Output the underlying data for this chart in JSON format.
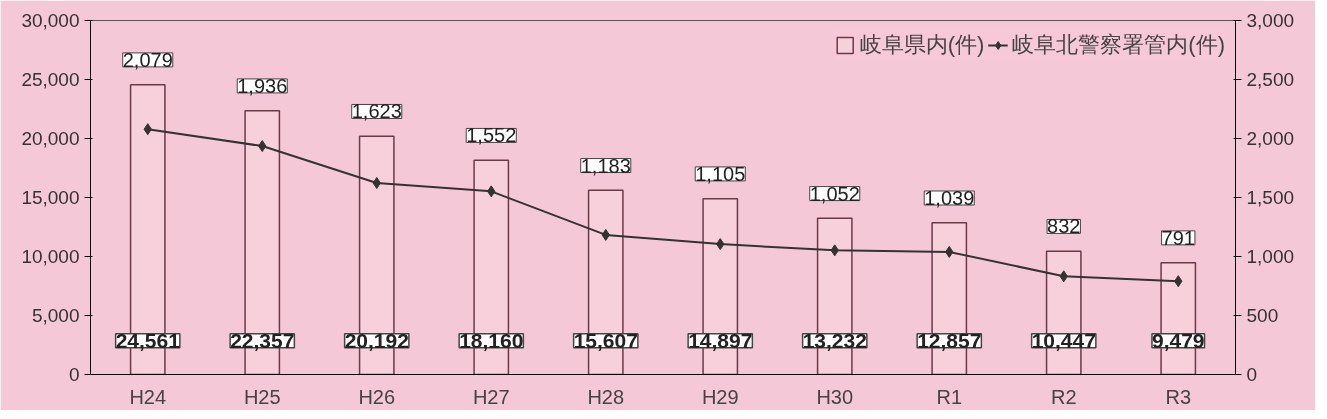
{
  "chart_data": {
    "type": "bar",
    "categories": [
      "H24",
      "H25",
      "H26",
      "H27",
      "H28",
      "H29",
      "H30",
      "R1",
      "R2",
      "R3"
    ],
    "series": [
      {
        "name": "岐阜県内(件)",
        "color": "#f7d0dc",
        "values": [
          24561,
          22357,
          20192,
          18160,
          15607,
          14897,
          13232,
          12857,
          10447,
          9479
        ],
        "value_labels": [
          "24,561",
          "22,357",
          "20,192",
          "18,160",
          "15,607",
          "14,897",
          "13,232",
          "12,857",
          "10,447",
          "9,479"
        ]
      },
      {
        "name": "岐阜北警察署管内(件)",
        "type": "line",
        "axis": "y2",
        "color": "#333333",
        "marker": "diamond",
        "values": [
          2079,
          1936,
          1623,
          1552,
          1183,
          1105,
          1052,
          1039,
          832,
          791
        ],
        "value_labels": [
          "2,079",
          "1,936",
          "1,623",
          "1,552",
          "1,183",
          "1,105",
          "1,052",
          "1,039",
          "832",
          "791"
        ]
      }
    ],
    "ylim": [
      0,
      30000
    ],
    "yticks": [
      {
        "value": 0,
        "label": "0"
      },
      {
        "value": 5000,
        "label": "5,000"
      },
      {
        "value": 10000,
        "label": "10,000"
      },
      {
        "value": 15000,
        "label": "15,000"
      },
      {
        "value": 20000,
        "label": "20,000"
      },
      {
        "value": 25000,
        "label": "25,000"
      },
      {
        "value": 30000,
        "label": "30,000"
      }
    ],
    "y2lim": [
      0,
      3000
    ],
    "y2ticks": [
      {
        "value": 0,
        "label": "0"
      },
      {
        "value": 500,
        "label": "500"
      },
      {
        "value": 1000,
        "label": "1,000"
      },
      {
        "value": 1500,
        "label": "1,500"
      },
      {
        "value": 2000,
        "label": "2,000"
      },
      {
        "value": 2500,
        "label": "2,500"
      },
      {
        "value": 3000,
        "label": "3,000"
      }
    ],
    "legend": "top right"
  }
}
